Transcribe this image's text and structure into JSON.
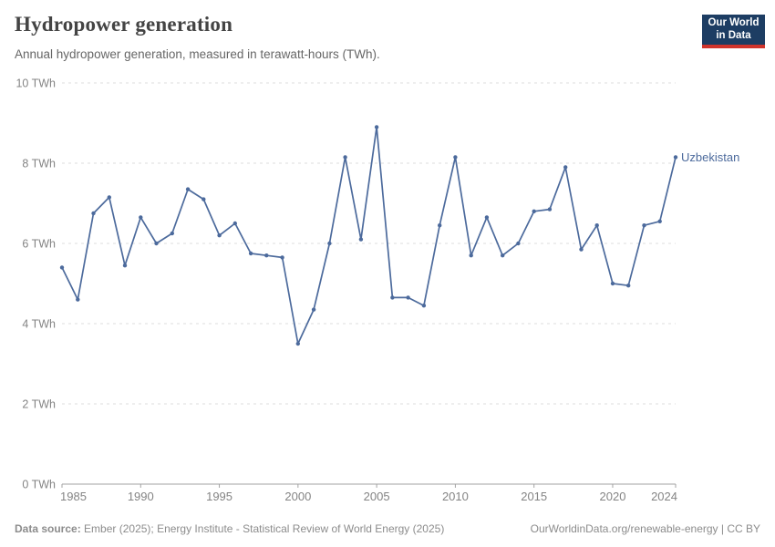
{
  "header": {
    "title": "Hydropower generation",
    "subtitle": "Annual hydropower generation, measured in terawatt-hours (TWh)."
  },
  "logo": {
    "line1": "Our World",
    "line2": "in Data",
    "bg_color": "#1d3d63",
    "bar_color": "#d0342c"
  },
  "chart_data": {
    "type": "line",
    "title": "Hydropower generation",
    "unit": "TWh",
    "x": [
      1985,
      1986,
      1987,
      1988,
      1989,
      1990,
      1991,
      1992,
      1993,
      1994,
      1995,
      1996,
      1997,
      1998,
      1999,
      2000,
      2001,
      2002,
      2003,
      2004,
      2005,
      2006,
      2007,
      2008,
      2009,
      2010,
      2011,
      2012,
      2013,
      2014,
      2015,
      2016,
      2017,
      2018,
      2019,
      2020,
      2021,
      2022,
      2023,
      2024
    ],
    "series": [
      {
        "name": "Uzbekistan",
        "color": "#4c6a9c",
        "values": [
          5.4,
          4.6,
          6.75,
          7.15,
          5.45,
          6.65,
          6.0,
          6.25,
          7.35,
          7.1,
          6.2,
          6.5,
          5.75,
          5.7,
          5.65,
          3.5,
          4.35,
          6.0,
          8.15,
          6.1,
          8.9,
          4.65,
          4.65,
          4.45,
          6.45,
          8.15,
          5.7,
          6.65,
          5.7,
          6.0,
          6.8,
          6.85,
          7.9,
          5.85,
          6.45,
          5.0,
          4.95,
          6.45,
          6.55,
          8.15
        ]
      }
    ],
    "ylim": [
      0,
      10
    ],
    "yticks": [
      0,
      2,
      4,
      6,
      8,
      10
    ],
    "ytick_suffix": " TWh",
    "xticks": [
      1985,
      1990,
      1995,
      2000,
      2005,
      2010,
      2015,
      2020,
      2024
    ],
    "grid": "horizontal-dashed",
    "legend_position": "end-of-line-label"
  },
  "footer": {
    "source_label": "Data source:",
    "source_text": "Ember (2025); Energy Institute - Statistical Review of World Energy (2025)",
    "credit": "OurWorldinData.org/renewable-energy | CC BY"
  },
  "colors": {
    "line": "#4c6a9c",
    "axis_text": "#848484",
    "gridline": "#dedede",
    "axis_line": "#a3a3a3",
    "title": "#444444",
    "subtitle": "#666666",
    "footer": "#8c8c8c"
  }
}
